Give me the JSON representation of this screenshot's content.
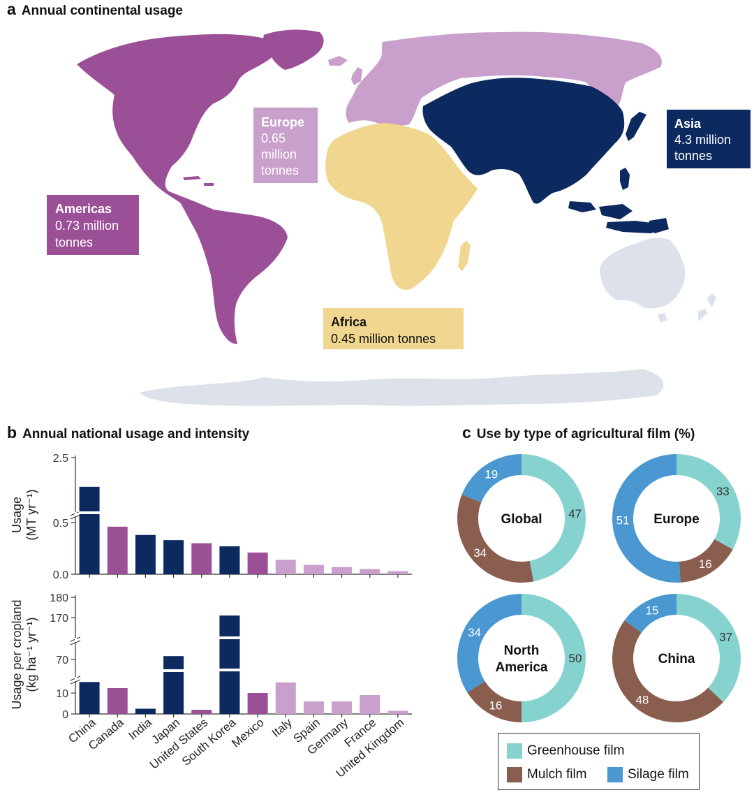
{
  "panel_a": {
    "letter": "a",
    "title": "Annual continental usage",
    "regions": [
      {
        "name": "Americas",
        "value": "0.73 million",
        "unit": "tonnes",
        "color": "#9b4f97"
      },
      {
        "name": "Europe",
        "value": "0.65",
        "value2": "million",
        "unit": "tonnes",
        "color": "#c99fcb"
      },
      {
        "name": "Africa",
        "value": "0.45 million tonnes",
        "color": "#f0d68f"
      },
      {
        "name": "Asia",
        "value": "4.3 million",
        "unit": "tonnes",
        "color": "#0c2a5f"
      }
    ],
    "other_land_color": "#dde2ea"
  },
  "panel_b": {
    "letter": "b",
    "title": "Annual national usage and intensity"
  },
  "panel_c": {
    "letter": "c",
    "title": "Use by type of agricultural film (%)"
  },
  "chart_data": [
    {
      "type": "bar",
      "categories": [
        "China",
        "Canada",
        "India",
        "Japan",
        "United States",
        "South Korea",
        "Mexico",
        "Italy",
        "Spain",
        "Germany",
        "France",
        "United Kingdom"
      ],
      "ylabel": "Usage",
      "yunit": "(MT yr⁻¹)",
      "y_ticks": [
        "0.0",
        "0.5",
        "2.5"
      ],
      "axis_break": true,
      "values": [
        1.6,
        0.46,
        0.38,
        0.33,
        0.3,
        0.27,
        0.21,
        0.14,
        0.09,
        0.07,
        0.05,
        0.03
      ],
      "bar_colors": [
        "#0c2a5f",
        "#9b4f97",
        "#0c2a5f",
        "#0c2a5f",
        "#9b4f97",
        "#0c2a5f",
        "#9b4f97",
        "#c99fcb",
        "#c99fcb",
        "#c99fcb",
        "#c99fcb",
        "#c99fcb"
      ]
    },
    {
      "type": "bar",
      "categories": [
        "China",
        "Canada",
        "India",
        "Japan",
        "United States",
        "South Korea",
        "Mexico",
        "Italy",
        "Spain",
        "Germany",
        "France",
        "United Kingdom"
      ],
      "ylabel": "Usage per cropland",
      "yunit": "(kg ha⁻¹ yr⁻¹)",
      "y_ticks": [
        "0",
        "10",
        "70",
        "170",
        "180"
      ],
      "axis_break": true,
      "values": [
        17,
        12,
        2.5,
        78,
        2,
        171,
        10,
        16,
        6,
        6,
        9,
        1.5
      ],
      "bar_colors": [
        "#0c2a5f",
        "#9b4f97",
        "#0c2a5f",
        "#0c2a5f",
        "#9b4f97",
        "#0c2a5f",
        "#9b4f97",
        "#c99fcb",
        "#c99fcb",
        "#c99fcb",
        "#c99fcb",
        "#c99fcb"
      ]
    },
    {
      "type": "pie",
      "title": "Global",
      "slices": [
        {
          "label": "Greenhouse film",
          "value": 47,
          "color": "#86d2cf"
        },
        {
          "label": "Mulch film",
          "value": 34,
          "color": "#8a5e4e"
        },
        {
          "label": "Silage film",
          "value": 19,
          "color": "#4a97d1"
        }
      ]
    },
    {
      "type": "pie",
      "title": "Europe",
      "slices": [
        {
          "label": "Greenhouse film",
          "value": 33,
          "color": "#86d2cf"
        },
        {
          "label": "Mulch film",
          "value": 16,
          "color": "#8a5e4e"
        },
        {
          "label": "Silage film",
          "value": 51,
          "color": "#4a97d1"
        }
      ]
    },
    {
      "type": "pie",
      "title": "North America",
      "title_lines": [
        "North",
        "America"
      ],
      "slices": [
        {
          "label": "Greenhouse film",
          "value": 50,
          "color": "#86d2cf"
        },
        {
          "label": "Mulch film",
          "value": 16,
          "color": "#8a5e4e"
        },
        {
          "label": "Silage film",
          "value": 34,
          "color": "#4a97d1"
        }
      ]
    },
    {
      "type": "pie",
      "title": "China",
      "slices": [
        {
          "label": "Greenhouse film",
          "value": 37,
          "color": "#86d2cf"
        },
        {
          "label": "Mulch film",
          "value": 48,
          "color": "#8a5e4e"
        },
        {
          "label": "Silage film",
          "value": 15,
          "color": "#4a97d1"
        }
      ]
    }
  ],
  "legend": [
    {
      "label": "Greenhouse film",
      "color": "#86d2cf"
    },
    {
      "label": "Mulch film",
      "color": "#8a5e4e"
    },
    {
      "label": "Silage film",
      "color": "#4a97d1"
    }
  ]
}
